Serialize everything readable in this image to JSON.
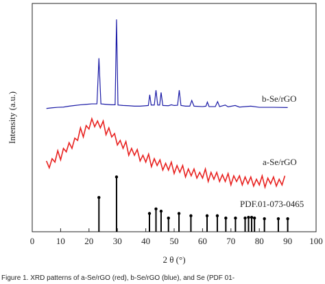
{
  "chart_data": {
    "type": "line",
    "xlabel": "2 θ (°)",
    "ylabel": "Intensity (a.u.)",
    "caption": "Figure 1. XRD patterns of a-Se/rGO (red), b-Se/rGO (blue), and Se (PDF 01-",
    "xlim": [
      0,
      100
    ],
    "xticks": [
      0,
      10,
      20,
      30,
      40,
      50,
      60,
      70,
      80,
      90,
      100
    ],
    "ylim": [
      0,
      100
    ],
    "series": [
      {
        "name": "b-Se/rGO",
        "color": "#1a1aa6",
        "x": [
          5,
          7,
          9,
          11,
          13,
          15,
          17,
          19,
          21,
          22.8,
          23.5,
          24.2,
          26,
          28,
          29.2,
          29.7,
          30.2,
          32,
          34,
          36,
          38,
          40,
          40.9,
          41.4,
          41.9,
          43,
          43.6,
          44.2,
          44.9,
          45.4,
          46,
          48,
          49,
          50,
          51.2,
          51.8,
          52.4,
          54,
          55.5,
          56.2,
          57,
          60,
          61.2,
          61.7,
          62.3,
          64.5,
          65.3,
          66,
          68,
          69,
          71.5,
          73,
          77,
          80,
          85,
          90
        ],
        "values": [
          54,
          54.3,
          54.5,
          54.6,
          55,
          55.3,
          55.6,
          55.8,
          56,
          56,
          76,
          56,
          55.8,
          55.6,
          55.6,
          93,
          55.5,
          55.3,
          55.2,
          55,
          55,
          55.2,
          55.3,
          60,
          55.5,
          55.5,
          62,
          55.5,
          55.5,
          61,
          55.3,
          55.2,
          55.6,
          55.3,
          55.4,
          62,
          55.3,
          55,
          55,
          57.5,
          55,
          54.8,
          55,
          56.8,
          54.8,
          54.8,
          57,
          54.8,
          55.5,
          54.7,
          55.3,
          54.6,
          55,
          54.5,
          54.5,
          54.4
        ]
      },
      {
        "name": "a-Se/rGO",
        "color": "#e8201e",
        "x": [
          5,
          6,
          7,
          8,
          9,
          10,
          11,
          12,
          13,
          14,
          15,
          16,
          17,
          18,
          19,
          20,
          21,
          22,
          23,
          24,
          25,
          26,
          27,
          28,
          29,
          30,
          31,
          32,
          33,
          34,
          35,
          36,
          37,
          38,
          39,
          40,
          41,
          42,
          43,
          44,
          45,
          46,
          47,
          48,
          49,
          50,
          51,
          52,
          53,
          54,
          55,
          56,
          57,
          58,
          59,
          60,
          61,
          62,
          63,
          64,
          65,
          66,
          67,
          68,
          69,
          70,
          71,
          72,
          73,
          74,
          75,
          76,
          77,
          78,
          79,
          80,
          81,
          82,
          83,
          84,
          85,
          86,
          87,
          88,
          89
        ],
        "values": [
          31,
          28,
          32,
          30.5,
          35.5,
          31.5,
          36.5,
          35,
          39,
          36.5,
          41,
          40,
          45.5,
          41.5,
          46.5,
          45,
          49.5,
          46,
          48.5,
          45.5,
          48.5,
          42.5,
          45.5,
          41.5,
          43,
          38,
          40,
          36.5,
          39.5,
          33.5,
          36.5,
          33.5,
          36,
          31,
          33.5,
          30.5,
          34,
          28.5,
          32,
          29,
          31.5,
          27,
          30,
          27,
          30.5,
          25.5,
          29,
          26,
          29,
          24,
          27.5,
          24.5,
          27.5,
          23.5,
          26,
          23.5,
          27.5,
          22,
          26,
          23,
          26,
          22,
          25,
          22,
          25.5,
          20.5,
          24.5,
          22,
          24.5,
          20.5,
          24,
          21,
          24,
          20,
          23,
          20.5,
          24.5,
          19.5,
          23.5,
          21,
          24,
          20,
          23,
          20.5,
          24.5
        ]
      },
      {
        "name": "PDF.01-073-0465",
        "color": "#000000",
        "type": "stem",
        "x": [
          23.5,
          29.7,
          41.3,
          43.6,
          45.4,
          48,
          51.7,
          55.9,
          61.6,
          65.2,
          68.2,
          71.6,
          75,
          76.2,
          77.3,
          78.3,
          81.8,
          86.7,
          90
        ],
        "values": [
          15,
          24,
          8,
          10,
          9,
          6,
          8,
          7,
          7,
          7,
          6,
          6,
          6,
          6.3,
          6.3,
          6,
          5.7,
          5.7,
          5.7
        ]
      }
    ]
  }
}
